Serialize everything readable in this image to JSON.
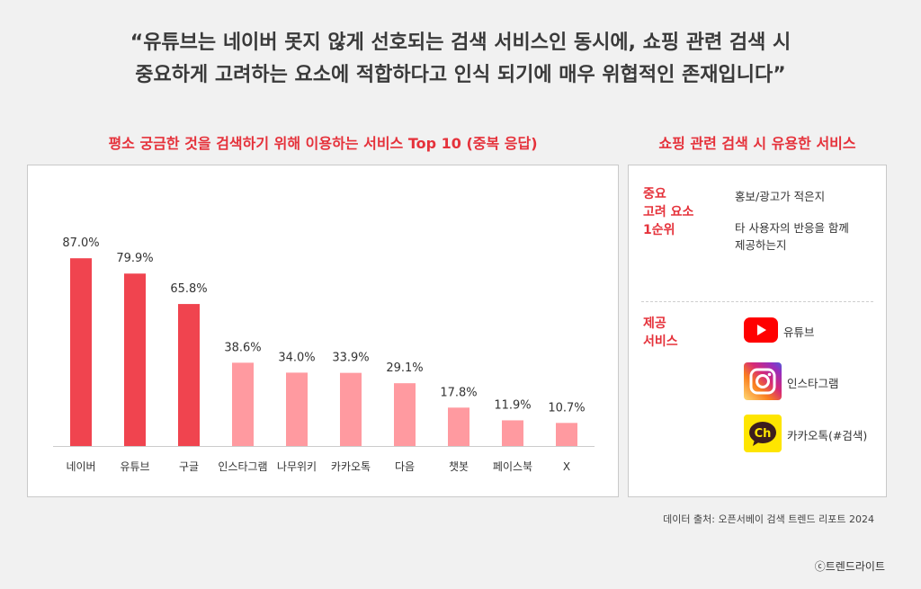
{
  "headline": {
    "line1": "“유튜브는 네이버 못지 않게 선호되는 검색 서비스인 동시에, 쇼핑 관련 검색 시",
    "line2": "중요하게 고려하는 요소에 적합하다고 인식 되기에 매우 위협적인 존재입니다”"
  },
  "chart_data": {
    "type": "bar",
    "title": "평소 궁금한 것을 검색하기 위해 이용하는 서비스 Top 10 (중복 응답)",
    "categories": [
      "네이버",
      "유튜브",
      "구글",
      "인스타그램",
      "나무위키",
      "카카오톡",
      "다음",
      "챗봇",
      "페이스북",
      "X"
    ],
    "values": [
      87.0,
      79.9,
      65.8,
      38.6,
      34.0,
      33.9,
      29.1,
      17.8,
      11.9,
      10.7
    ],
    "value_labels": [
      "87.0%",
      "79.9%",
      "65.8%",
      "38.6%",
      "34.0%",
      "33.9%",
      "29.1%",
      "17.8%",
      "11.9%",
      "10.7%"
    ],
    "unit": "%",
    "ylim": [
      0,
      100
    ],
    "grid": false,
    "colors": {
      "top3": "#f0444f",
      "rest": "#ff9aa0",
      "axis": "#cccccc"
    }
  },
  "side": {
    "title": "쇼핑 관련 검색 시 유용한 서비스",
    "factor_label": [
      "중요",
      "고려 요소",
      "1순위"
    ],
    "factor_items": [
      "홍보/광고가 적은지",
      "타 사용자의 반응을 함께",
      "제공하는지"
    ],
    "service_label": [
      "제공",
      "서비스"
    ],
    "services": [
      {
        "name": "유튜브",
        "icon": "youtube-icon"
      },
      {
        "name": "인스타그램",
        "icon": "instagram-icon"
      },
      {
        "name": "카카오톡(#검색)",
        "icon": "kakaotalk-icon"
      }
    ],
    "kakao_icon_text": "Ch"
  },
  "footer": {
    "source": "데이터 출처: 오픈서베이 검색 트렌드 리포트 2024",
    "copyright": "ⓒ트렌드라이트"
  }
}
